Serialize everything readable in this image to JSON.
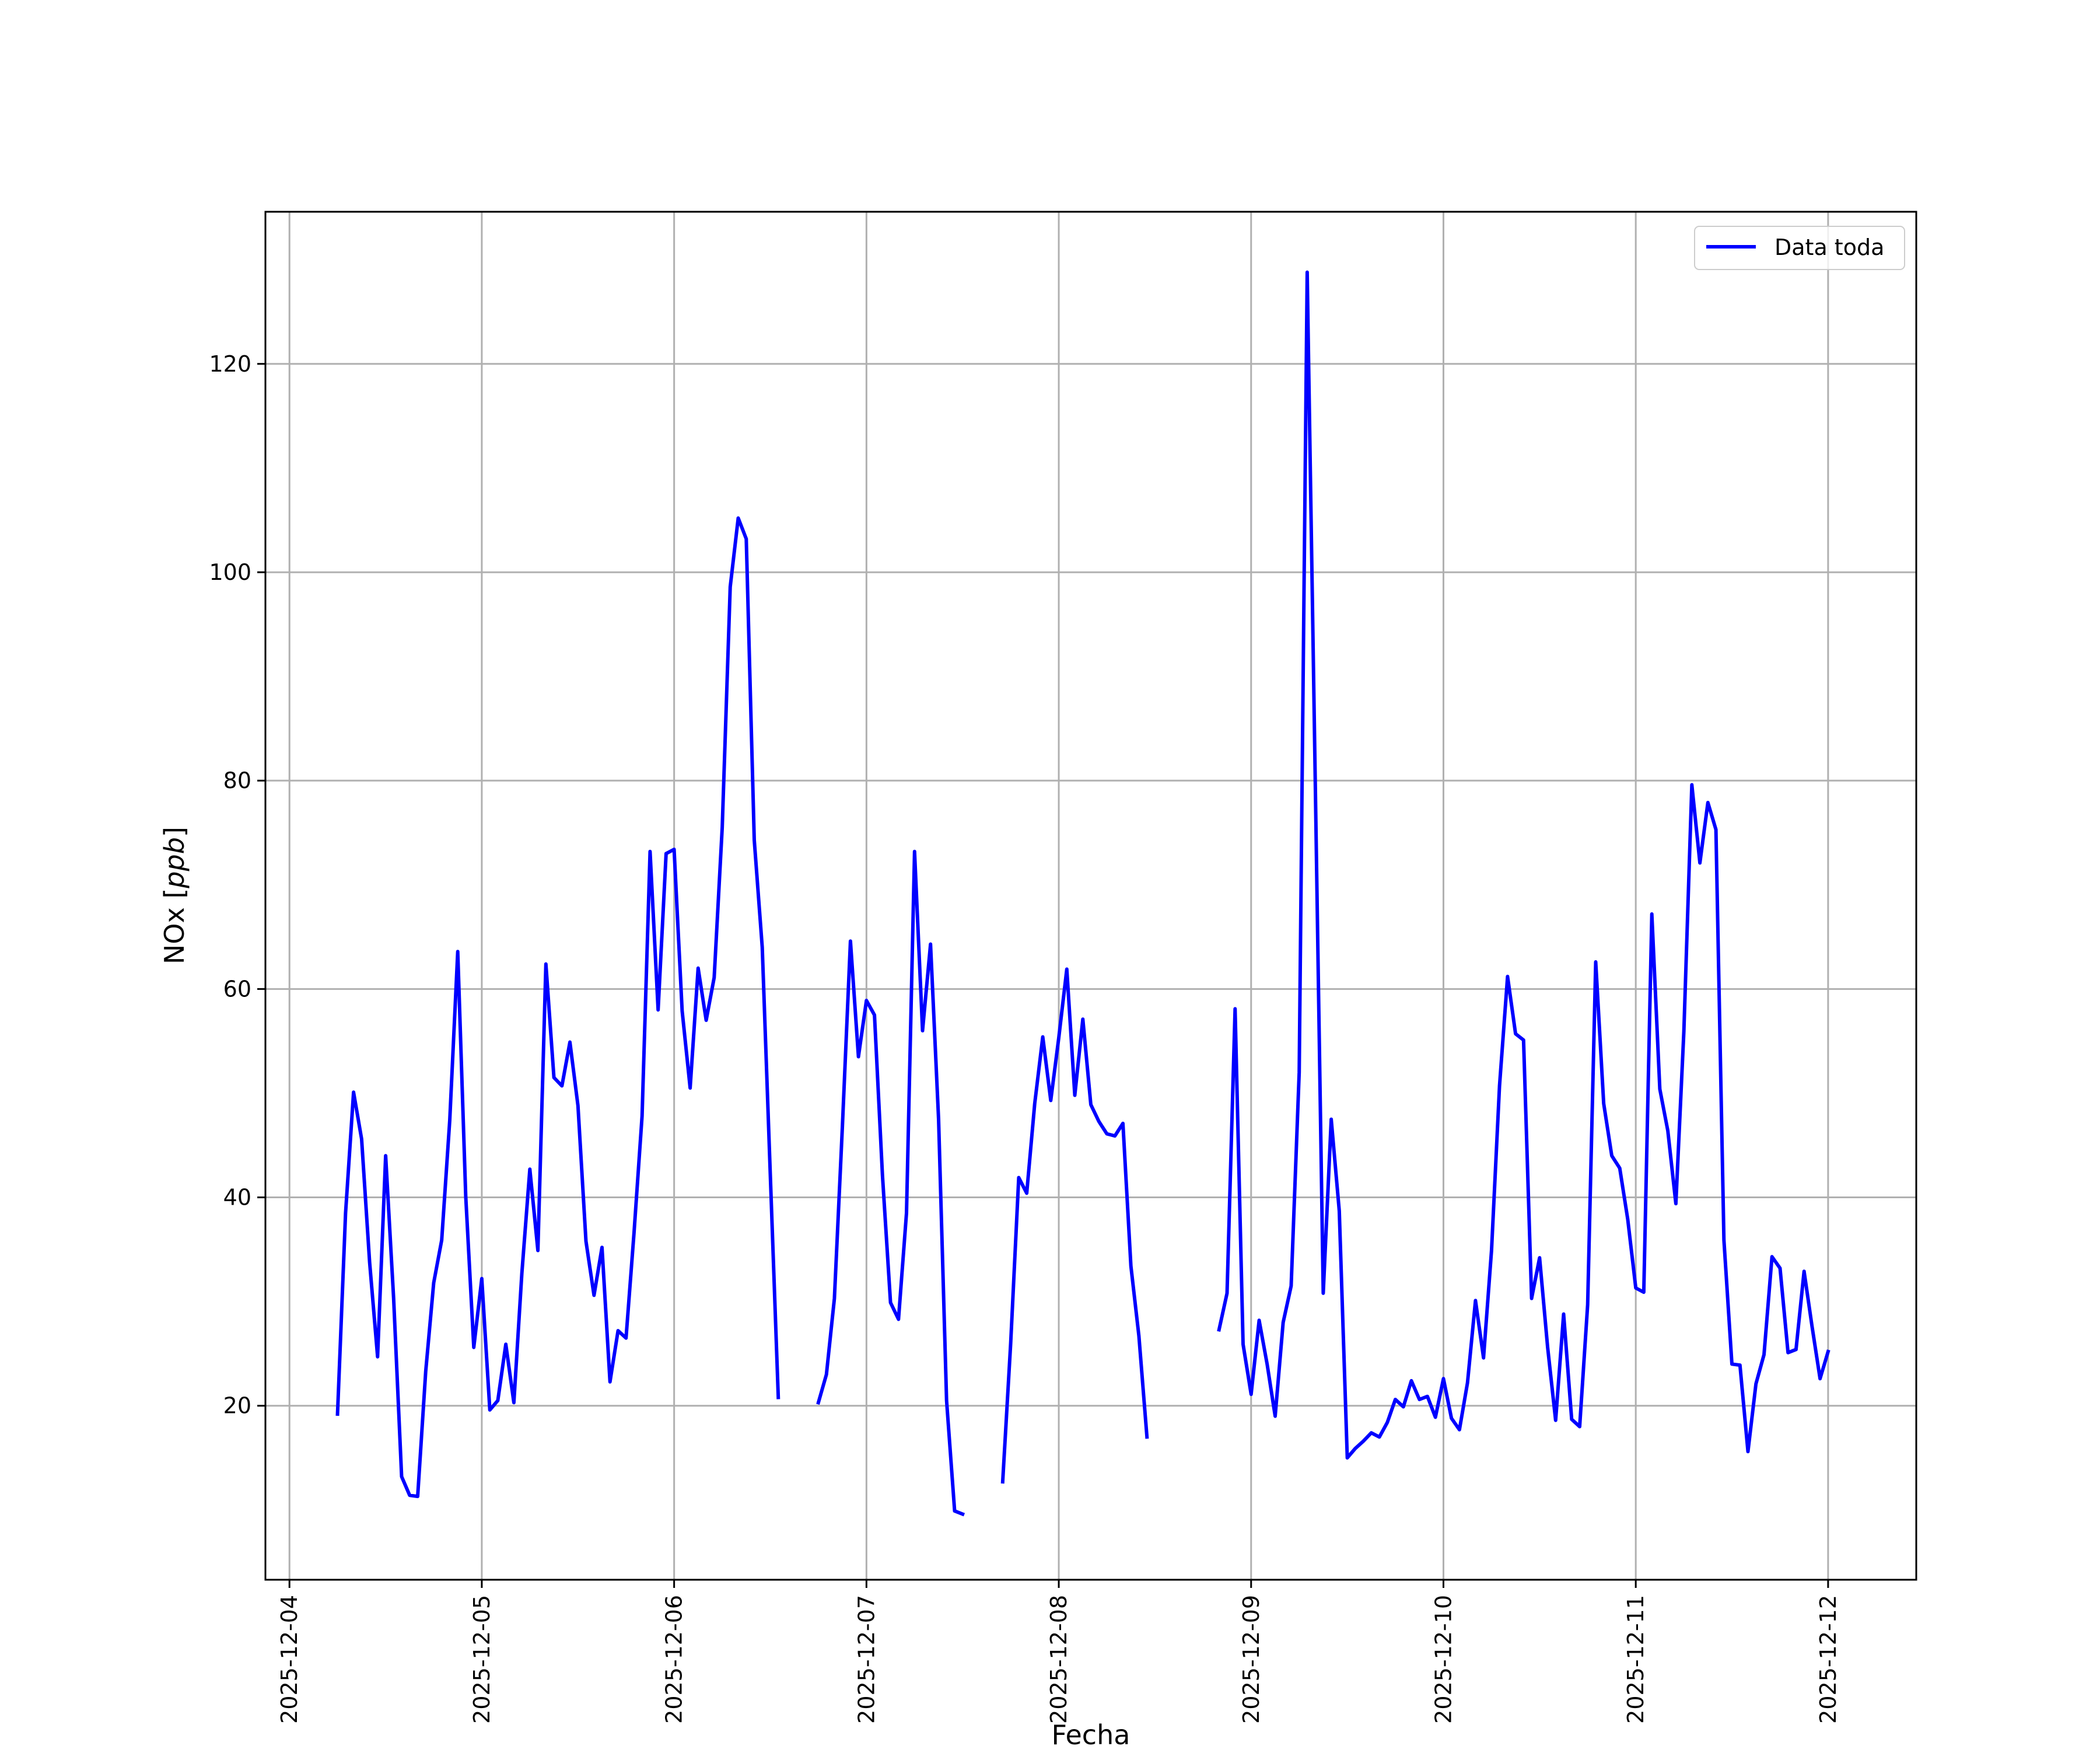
{
  "chart_data": {
    "type": "line",
    "title": "",
    "xlabel": "Fecha",
    "ylabel_plain": "NOx [",
    "ylabel_italic": "ppb",
    "ylabel_close": "]",
    "ylim": [
      3.3,
      134.6
    ],
    "xlim": [
      "2025-12-03T21:00",
      "2025-12-12T11:00"
    ],
    "grid": true,
    "legend_position": "top-right",
    "xtick_labels": [
      "2025-12-04",
      "2025-12-05",
      "2025-12-06",
      "2025-12-07",
      "2025-12-08",
      "2025-12-09",
      "2025-12-10",
      "2025-12-11",
      "2025-12-12"
    ],
    "ytick_labels": [
      "20",
      "40",
      "60",
      "80",
      "100",
      "120"
    ],
    "ytick_values": [
      20,
      40,
      60,
      80,
      100,
      120
    ],
    "colors": {
      "line": "#0000ff",
      "grid": "#b0b0b0",
      "axes": "#000000"
    },
    "series": [
      {
        "name": "Data toda",
        "x": [
          "2025-12-04T06:00",
          "2025-12-04T07:00",
          "2025-12-04T08:00",
          "2025-12-04T09:00",
          "2025-12-04T10:00",
          "2025-12-04T11:00",
          "2025-12-04T12:00",
          "2025-12-04T13:00",
          "2025-12-04T14:00",
          "2025-12-04T15:00",
          "2025-12-04T16:00",
          "2025-12-04T17:00",
          "2025-12-04T18:00",
          "2025-12-04T19:00",
          "2025-12-04T20:00",
          "2025-12-04T21:00",
          "2025-12-04T22:00",
          "2025-12-04T23:00",
          "2025-12-05T00:00",
          "2025-12-05T01:00",
          "2025-12-05T02:00",
          "2025-12-05T03:00",
          "2025-12-05T04:00",
          "2025-12-05T05:00",
          "2025-12-05T06:00",
          "2025-12-05T07:00",
          "2025-12-05T08:00",
          "2025-12-05T09:00",
          "2025-12-05T10:00",
          "2025-12-05T11:00",
          "2025-12-05T12:00",
          "2025-12-05T13:00",
          "2025-12-05T14:00",
          "2025-12-05T15:00",
          "2025-12-05T16:00",
          "2025-12-05T17:00",
          "2025-12-05T18:00",
          "2025-12-05T19:00",
          "2025-12-05T20:00",
          "2025-12-05T21:00",
          "2025-12-05T22:00",
          "2025-12-05T23:00",
          "2025-12-06T00:00",
          "2025-12-06T01:00",
          "2025-12-06T02:00",
          "2025-12-06T03:00",
          "2025-12-06T04:00",
          "2025-12-06T05:00",
          "2025-12-06T06:00",
          "2025-12-06T07:00",
          "2025-12-06T08:00",
          "2025-12-06T09:00",
          "2025-12-06T10:00",
          "2025-12-06T11:00",
          "2025-12-06T12:00",
          "2025-12-06T13:00",
          "2025-12-06T18:00",
          "2025-12-06T19:00",
          "2025-12-06T20:00",
          "2025-12-06T21:00",
          "2025-12-06T22:00",
          "2025-12-06T23:00",
          "2025-12-07T00:00",
          "2025-12-07T01:00",
          "2025-12-07T02:00",
          "2025-12-07T03:00",
          "2025-12-07T04:00",
          "2025-12-07T05:00",
          "2025-12-07T06:00",
          "2025-12-07T07:00",
          "2025-12-07T08:00",
          "2025-12-07T09:00",
          "2025-12-07T10:00",
          "2025-12-07T11:00",
          "2025-12-07T12:00",
          "2025-12-07T17:00",
          "2025-12-07T18:00",
          "2025-12-07T19:00",
          "2025-12-07T20:00",
          "2025-12-07T21:00",
          "2025-12-07T22:00",
          "2025-12-07T23:00",
          "2025-12-08T00:00",
          "2025-12-08T01:00",
          "2025-12-08T02:00",
          "2025-12-08T03:00",
          "2025-12-08T04:00",
          "2025-12-08T05:00",
          "2025-12-08T06:00",
          "2025-12-08T07:00",
          "2025-12-08T08:00",
          "2025-12-08T09:00",
          "2025-12-08T10:00",
          "2025-12-08T11:00",
          "2025-12-08T20:00",
          "2025-12-08T21:00",
          "2025-12-08T22:00",
          "2025-12-08T23:00",
          "2025-12-09T00:00",
          "2025-12-09T01:00",
          "2025-12-09T02:00",
          "2025-12-09T03:00",
          "2025-12-09T04:00",
          "2025-12-09T05:00",
          "2025-12-09T06:00",
          "2025-12-09T07:00",
          "2025-12-09T08:00",
          "2025-12-09T09:00",
          "2025-12-09T10:00",
          "2025-12-09T11:00",
          "2025-12-09T12:00",
          "2025-12-09T13:00",
          "2025-12-09T14:00",
          "2025-12-09T15:00",
          "2025-12-09T16:00",
          "2025-12-09T17:00",
          "2025-12-09T18:00",
          "2025-12-09T19:00",
          "2025-12-09T20:00",
          "2025-12-09T21:00",
          "2025-12-09T22:00",
          "2025-12-09T23:00",
          "2025-12-10T00:00",
          "2025-12-10T01:00",
          "2025-12-10T02:00",
          "2025-12-10T03:00",
          "2025-12-10T04:00",
          "2025-12-10T05:00",
          "2025-12-10T06:00",
          "2025-12-10T07:00",
          "2025-12-10T08:00",
          "2025-12-10T09:00",
          "2025-12-10T10:00",
          "2025-12-10T11:00",
          "2025-12-10T12:00",
          "2025-12-10T13:00",
          "2025-12-10T14:00",
          "2025-12-10T15:00",
          "2025-12-10T16:00",
          "2025-12-10T17:00",
          "2025-12-10T18:00",
          "2025-12-10T19:00",
          "2025-12-10T20:00",
          "2025-12-10T21:00",
          "2025-12-10T22:00",
          "2025-12-10T23:00",
          "2025-12-11T00:00",
          "2025-12-11T01:00",
          "2025-12-11T02:00",
          "2025-12-11T03:00",
          "2025-12-11T04:00",
          "2025-12-11T05:00",
          "2025-12-11T06:00",
          "2025-12-11T07:00",
          "2025-12-11T08:00",
          "2025-12-11T09:00",
          "2025-12-11T10:00",
          "2025-12-11T11:00",
          "2025-12-11T12:00",
          "2025-12-11T13:00",
          "2025-12-11T14:00",
          "2025-12-11T15:00",
          "2025-12-11T16:00",
          "2025-12-11T17:00",
          "2025-12-11T18:00",
          "2025-12-11T19:00",
          "2025-12-11T20:00",
          "2025-12-11T21:00",
          "2025-12-11T22:00",
          "2025-12-11T23:00",
          "2025-12-12T00:00"
        ],
        "y": [
          19.2,
          38.5,
          50.1,
          45.6,
          33.8,
          24.7,
          44.0,
          30.3,
          13.2,
          11.4,
          11.3,
          23.3,
          31.8,
          35.9,
          47.4,
          63.6,
          40.1,
          25.6,
          32.2,
          19.6,
          20.5,
          25.9,
          20.3,
          32.7,
          42.7,
          34.9,
          62.4,
          51.5,
          50.7,
          54.9,
          48.8,
          35.8,
          30.6,
          35.2,
          22.3,
          27.2,
          26.5,
          36.6,
          47.8,
          73.2,
          58.0,
          73.0,
          73.4,
          57.9,
          50.5,
          62.0,
          57.0,
          61.1,
          75.5,
          98.6,
          105.2,
          103.2,
          74.3,
          64.0,
          42.2,
          20.8,
          20.3,
          23.0,
          30.3,
          46.8,
          64.6,
          53.5,
          58.9,
          57.5,
          42.1,
          29.9,
          28.3,
          38.5,
          73.2,
          56.0,
          64.3,
          47.5,
          20.5,
          9.9,
          9.6,
          12.7,
          26.0,
          41.9,
          40.4,
          49.0,
          55.4,
          49.3,
          55.3,
          61.9,
          49.8,
          57.1,
          48.9,
          47.3,
          46.1,
          45.9,
          47.1,
          33.4,
          26.7,
          17.0,
          27.3,
          30.8,
          58.1,
          25.9,
          21.1,
          28.2,
          24.0,
          19.0,
          28.0,
          31.5,
          52.0,
          128.8,
          80.0,
          30.8,
          47.5,
          38.7,
          15.0,
          15.9,
          16.6,
          17.4,
          17.0,
          18.4,
          20.6,
          19.9,
          22.4,
          20.6,
          20.9,
          18.9,
          22.6,
          18.8,
          17.7,
          22.2,
          30.1,
          24.6,
          34.9,
          50.7,
          61.2,
          55.7,
          55.1,
          30.3,
          34.2,
          25.6,
          18.6,
          28.8,
          18.7,
          18.0,
          29.7,
          62.6,
          49.0,
          44.0,
          42.8,
          37.9,
          31.3,
          30.9,
          67.2,
          50.4,
          46.4,
          39.4,
          55.9,
          79.6,
          72.1,
          77.9,
          75.3,
          35.9,
          24.0,
          23.9,
          15.6,
          22.1,
          24.9,
          34.3,
          33.2,
          25.1,
          25.4,
          32.9,
          27.6,
          22.6,
          25.2
        ],
        "gaps_after": [
          "2025-12-06T13:00",
          "2025-12-07T12:00",
          "2025-12-08T11:00"
        ]
      }
    ]
  }
}
